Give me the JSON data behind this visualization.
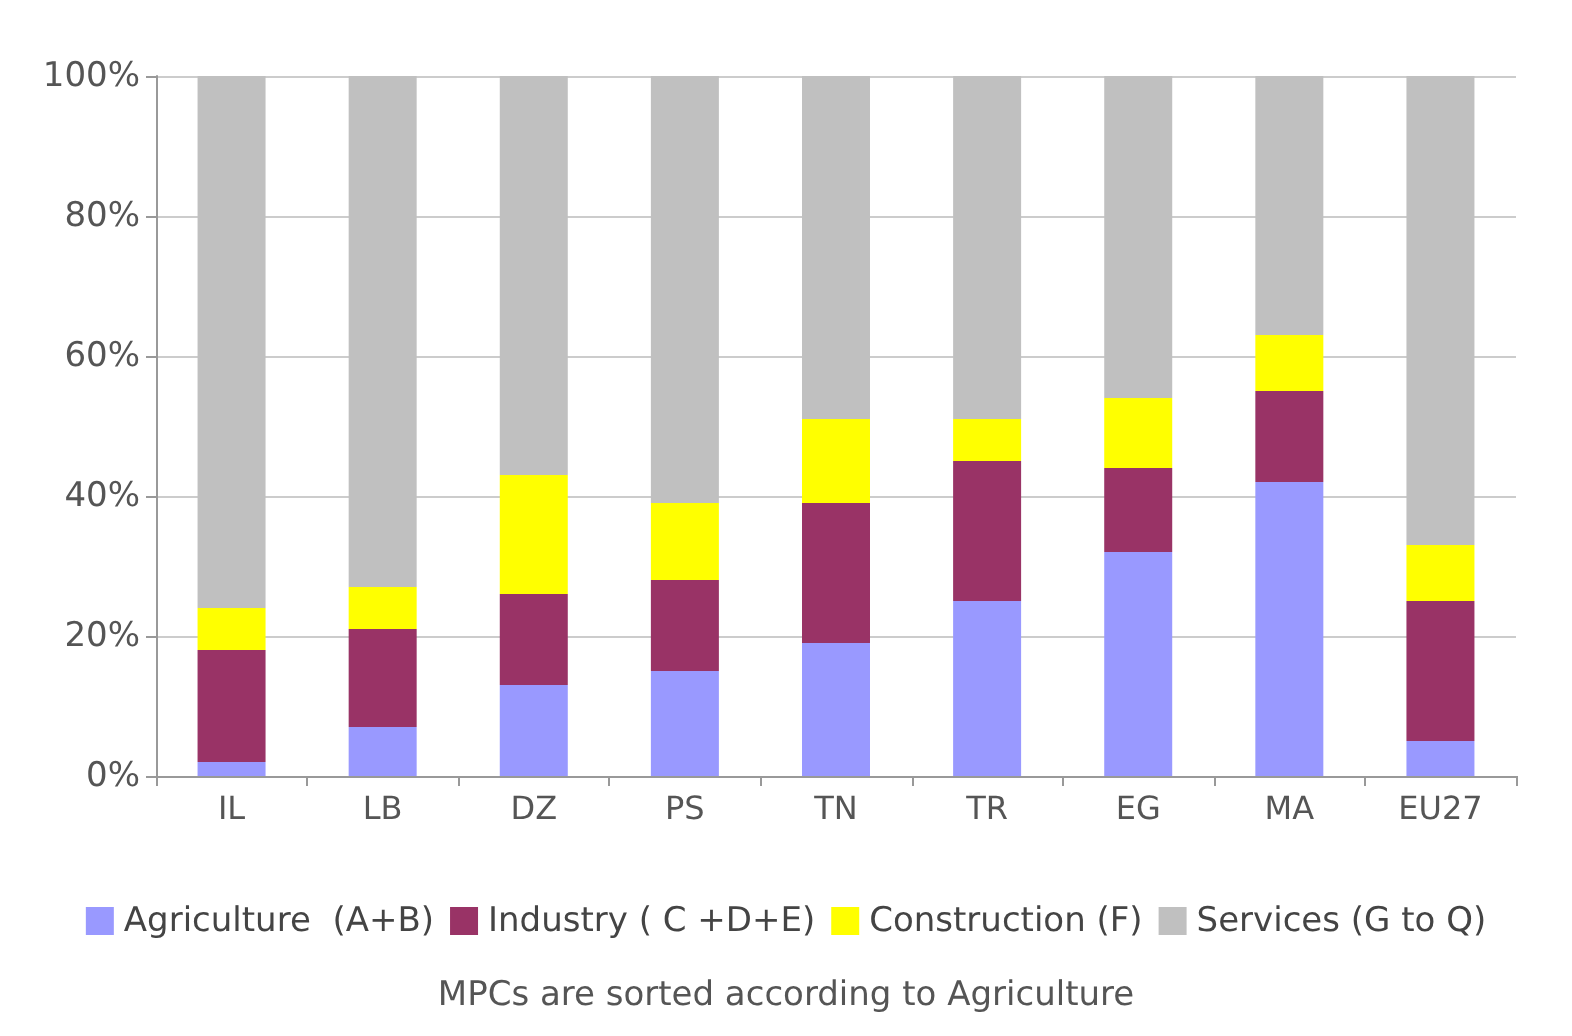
{
  "chart_data": {
    "type": "bar",
    "stacked": true,
    "categories": [
      "IL",
      "LB",
      "DZ",
      "PS",
      "TN",
      "TR",
      "EG",
      "MA",
      "EU27"
    ],
    "series": [
      {
        "name": "Agriculture  (A+B)",
        "color": "#9999ff",
        "values": [
          2,
          7,
          13,
          15,
          19,
          25,
          32,
          42,
          5
        ]
      },
      {
        "name": "Industry ( C +D+E)",
        "color": "#993366",
        "values": [
          16,
          14,
          13,
          13,
          20,
          20,
          12,
          13,
          20
        ]
      },
      {
        "name": "Construction (F)",
        "color": "#ffff00",
        "values": [
          6,
          6,
          17,
          11,
          12,
          6,
          10,
          8,
          8
        ]
      },
      {
        "name": "Services (G to Q)",
        "color": "#c0c0c0",
        "values": [
          76,
          73,
          57,
          61,
          49,
          49,
          46,
          37,
          67
        ]
      }
    ],
    "ylim": [
      0,
      100
    ],
    "yticks": [
      {
        "value": 0,
        "label": "0%"
      },
      {
        "value": 20,
        "label": "20%"
      },
      {
        "value": 40,
        "label": "40%"
      },
      {
        "value": 60,
        "label": "60%"
      },
      {
        "value": 80,
        "label": "80%"
      },
      {
        "value": 100,
        "label": "100%"
      }
    ],
    "grid": "y",
    "legend": "bottom",
    "annotations": [
      "MPCs are sorted according to Agriculture"
    ]
  }
}
